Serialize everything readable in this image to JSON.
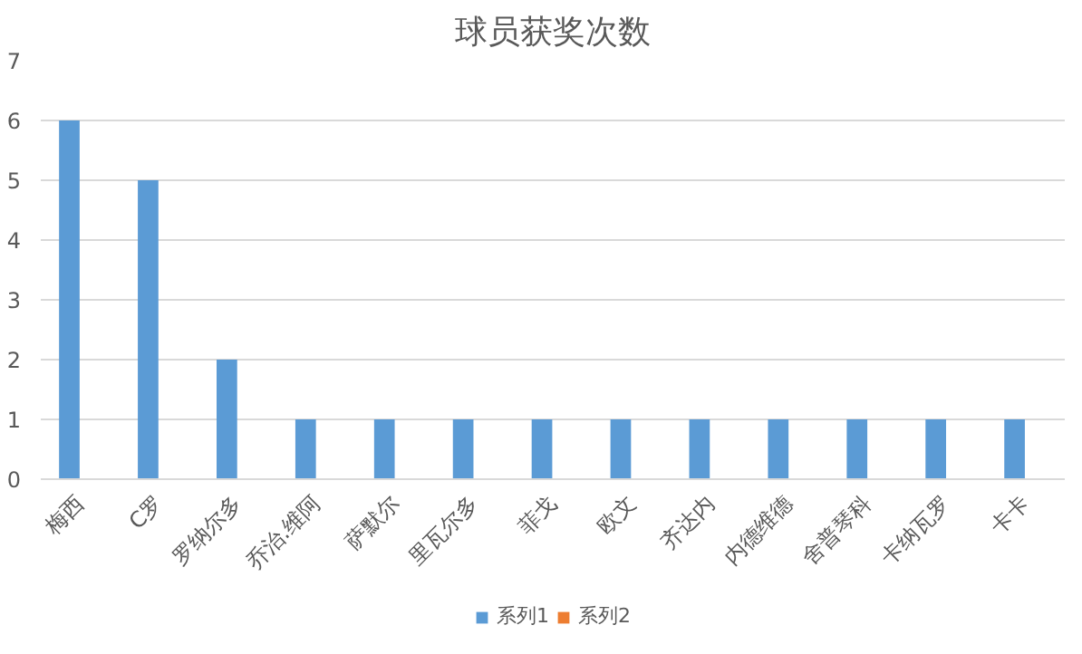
{
  "chart_data": {
    "type": "bar",
    "title": "球员获奖次数",
    "categories": [
      "梅西",
      "C罗",
      "罗纳尔多",
      "乔治.维阿",
      "萨默尔",
      "里瓦尔多",
      "菲戈",
      "欧文",
      "齐达内",
      "内德维德",
      "舍普琴科",
      "卡纳瓦罗",
      "卡卡"
    ],
    "series": [
      {
        "name": "系列1",
        "color": "#5b9bd5",
        "values": [
          6,
          5,
          2,
          1,
          1,
          1,
          1,
          1,
          1,
          1,
          1,
          1,
          1
        ]
      },
      {
        "name": "系列2",
        "color": "#ed7d31",
        "values": [
          null,
          null,
          null,
          null,
          null,
          null,
          null,
          null,
          null,
          null,
          null,
          null,
          null
        ]
      }
    ],
    "ylim": [
      0,
      7
    ],
    "yticks": [
      0,
      1,
      2,
      3,
      4,
      5,
      6,
      7
    ],
    "grid": "y",
    "legend": "bottom"
  }
}
